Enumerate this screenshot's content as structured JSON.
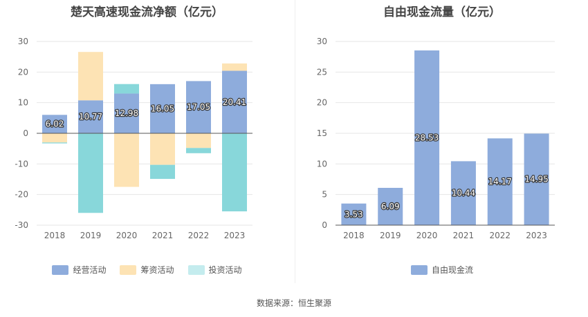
{
  "source": "数据来源：恒生聚源",
  "colors": {
    "operating": "#8eacdc",
    "financing": "#fde3b4",
    "investing": "#88d7da",
    "fcf": "#8eacdc"
  },
  "chart_data": [
    {
      "type": "bar",
      "title": "楚天高速现金流净额（亿元）",
      "categories": [
        "2018",
        "2019",
        "2020",
        "2021",
        "2022",
        "2023"
      ],
      "ylim": [
        -30,
        30
      ],
      "yticks": [
        30,
        20,
        10,
        0,
        -10,
        -20,
        -30
      ],
      "stacked": true,
      "grid": true,
      "legend_position": "bottom",
      "series": [
        {
          "name": "经营活动",
          "values": [
            6.02,
            10.77,
            12.98,
            16.05,
            17.05,
            20.41
          ],
          "labels": [
            "6.02",
            "10.77",
            "12.98",
            "16.05",
            "17.05",
            "20.41"
          ]
        },
        {
          "name": "筹资活动",
          "values": [
            -3.0,
            15.8,
            -17.5,
            -10.3,
            -4.8,
            2.4
          ]
        },
        {
          "name": "投资活动",
          "values": [
            -0.3,
            -26.0,
            3.1,
            -4.6,
            -1.7,
            -25.5
          ]
        }
      ]
    },
    {
      "type": "bar",
      "title": "自由现金流量（亿元）",
      "categories": [
        "2018",
        "2019",
        "2020",
        "2021",
        "2022",
        "2023"
      ],
      "ylim": [
        0,
        30
      ],
      "yticks": [
        30,
        25,
        20,
        15,
        10,
        5,
        0
      ],
      "grid": true,
      "legend_position": "bottom",
      "series": [
        {
          "name": "自由现金流",
          "values": [
            3.53,
            6.09,
            28.53,
            10.44,
            14.17,
            14.95
          ],
          "labels": [
            "3.53",
            "6.09",
            "28.53",
            "10.44",
            "14.17",
            "14.95"
          ]
        }
      ]
    }
  ]
}
